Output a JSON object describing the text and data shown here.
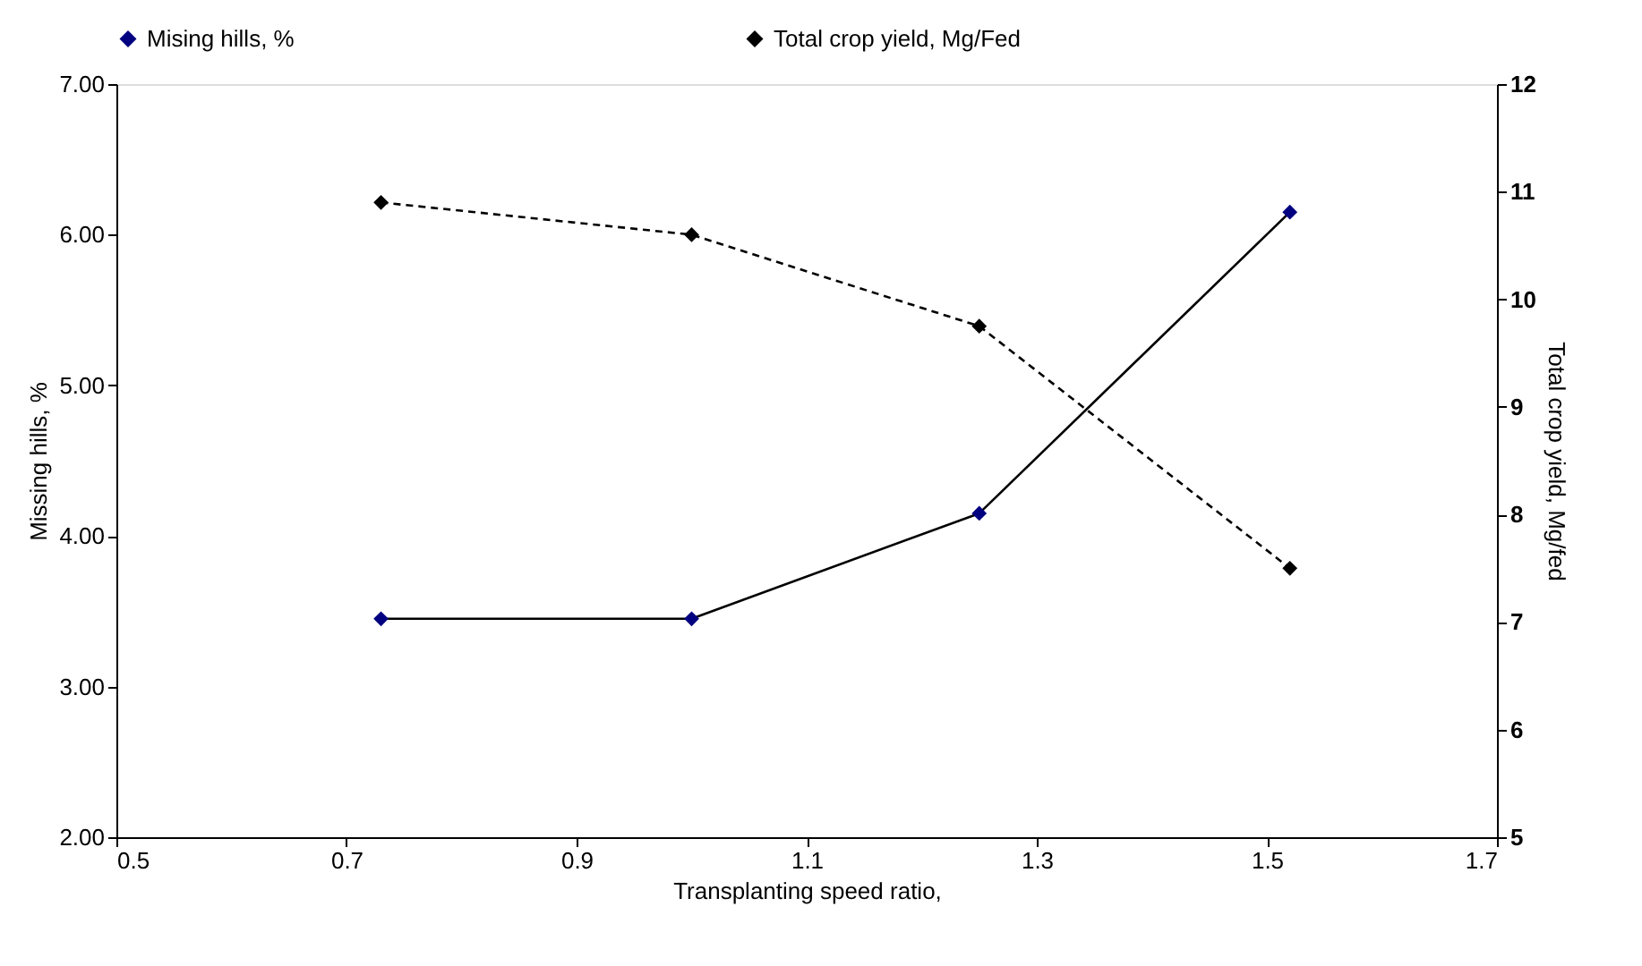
{
  "chart_data": {
    "type": "line",
    "xlabel": "Transplanting speed ratio,",
    "ylabel": "Missing hills, %",
    "y2label": "Total crop yield, Mg/fed",
    "x": [
      0.73,
      1.0,
      1.25,
      1.52
    ],
    "series": [
      {
        "name": "Mising hills, %",
        "color": "#000080",
        "values": [
          3.45,
          3.45,
          4.15,
          6.15
        ],
        "line_style": "solid"
      },
      {
        "name": "Total crop yield, Mg/Fed",
        "color": "#000000",
        "values": [
          10.9,
          10.6,
          9.75,
          7.5
        ],
        "axis": "y2",
        "line_style": "dashed"
      }
    ],
    "xlim": [
      0.5,
      1.7
    ],
    "xticks": [
      0.5,
      0.7,
      0.9,
      1.1,
      1.3,
      1.5,
      1.7
    ],
    "ylim": [
      2,
      7
    ],
    "yticks": [
      {
        "value": 2,
        "label": "2.00"
      },
      {
        "value": 3,
        "label": "3.00"
      },
      {
        "value": 4,
        "label": "4.00"
      },
      {
        "value": 5,
        "label": "5.00"
      },
      {
        "value": 6,
        "label": "6.00"
      },
      {
        "value": 7,
        "label": "7.00"
      }
    ],
    "y2lim": [
      5,
      12
    ],
    "y2ticks": [
      5,
      6,
      7,
      8,
      9,
      10,
      11,
      12
    ],
    "marker": "diamond",
    "grid": false,
    "legend": "top"
  }
}
